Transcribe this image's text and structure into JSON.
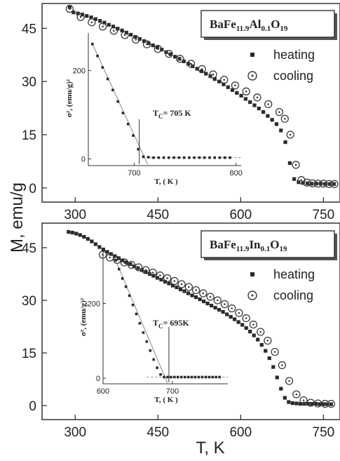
{
  "figure": {
    "y_axis_label": "M, emu/g",
    "x_axis_label": "T, K",
    "colors": {
      "heating": "#2a2a2a",
      "cooling": "#3a3a3a",
      "fit_line": "#888888",
      "axis": "#333333"
    }
  },
  "chart_data": [
    {
      "type": "scatter",
      "title_parts": [
        {
          "t": "BaFe",
          "s": ""
        },
        {
          "t": "11.9",
          "s": "sub"
        },
        {
          "t": "Al",
          "s": ""
        },
        {
          "t": "0.1",
          "s": "sub"
        },
        {
          "t": "O",
          "s": ""
        },
        {
          "t": "19",
          "s": "sub"
        }
      ],
      "xlim": [
        240,
        780
      ],
      "ylim": [
        -4,
        52
      ],
      "xticks": [
        "300",
        "450",
        "600",
        "750"
      ],
      "yticks": [
        "0",
        "15",
        "30",
        "45"
      ],
      "legend": {
        "position": "top-right",
        "heating": "heating",
        "cooling": "cooling"
      },
      "series": [
        {
          "name": "heating",
          "marker": "square",
          "x": [
            290,
            297,
            305,
            313,
            321,
            329,
            337,
            345,
            353,
            361,
            369,
            377,
            385,
            393,
            401,
            409,
            417,
            425,
            433,
            441,
            449,
            457,
            465,
            473,
            481,
            489,
            497,
            505,
            513,
            521,
            529,
            537,
            545,
            553,
            561,
            569,
            577,
            585,
            593,
            601,
            609,
            617,
            625,
            633,
            641,
            649,
            657,
            665,
            673,
            681,
            689,
            697,
            705,
            713,
            721,
            729,
            737,
            745,
            753,
            761,
            769
          ],
          "y": [
            51.0,
            49.5,
            49.2,
            48.9,
            48.5,
            48.1,
            47.6,
            47.1,
            46.6,
            46.0,
            45.5,
            44.9,
            44.4,
            43.8,
            43.2,
            42.6,
            42.0,
            41.4,
            40.8,
            40.2,
            39.6,
            39.0,
            38.3,
            37.7,
            37.0,
            36.4,
            35.7,
            35.0,
            34.3,
            33.6,
            32.9,
            32.2,
            31.5,
            30.7,
            30.0,
            29.2,
            28.4,
            27.6,
            26.8,
            26.0,
            25.1,
            24.2,
            23.3,
            22.4,
            21.4,
            20.3,
            19.2,
            18.0,
            16.2,
            12.9,
            7.0,
            2.5,
            1.6,
            1.4,
            1.3,
            1.2,
            1.2,
            1.2,
            1.1,
            1.1,
            1.1
          ]
        },
        {
          "name": "cooling",
          "marker": "circle-dot",
          "x": [
            290,
            310,
            330,
            350,
            370,
            390,
            410,
            430,
            450,
            470,
            490,
            510,
            530,
            550,
            570,
            590,
            610,
            630,
            650,
            670,
            680,
            690,
            700,
            710,
            720,
            730,
            740,
            750,
            760,
            770
          ],
          "y": [
            50.5,
            48.2,
            46.7,
            45.5,
            44.3,
            43.1,
            41.8,
            40.5,
            39.2,
            37.8,
            36.4,
            35.0,
            33.5,
            32.0,
            30.5,
            28.9,
            27.2,
            25.5,
            23.6,
            21.4,
            19.5,
            15.0,
            6.5,
            2.2,
            1.5,
            1.3,
            1.2,
            1.2,
            1.1,
            1.1
          ]
        }
      ],
      "inset": {
        "xlim": [
          655,
          805
        ],
        "ylim": [
          -15,
          285
        ],
        "xticks": [
          "700",
          "800"
        ],
        "yticks": [
          "0",
          "200"
        ],
        "ylabel": "σ², (emu/g)²",
        "xlabel": "T, ( K )",
        "annotation": "T = 705 K",
        "annotation_parts": [
          {
            "t": "T",
            "s": ""
          },
          {
            "t": "C",
            "s": "sub"
          },
          {
            "t": "= 705 K",
            "s": ""
          }
        ],
        "tc": 705,
        "x": [
          659,
          664,
          669,
          674,
          679,
          684,
          689,
          694,
          699,
          704,
          709,
          714,
          719,
          724,
          729,
          734,
          739,
          744,
          749,
          754,
          759,
          764,
          769,
          774,
          779,
          784,
          789,
          794
        ],
        "y": [
          260,
          233,
          207,
          181,
          156,
          130,
          104,
          79,
          53,
          22,
          5,
          4,
          3,
          3,
          3,
          3,
          3,
          3,
          3,
          3,
          3,
          3,
          3,
          3,
          3,
          3,
          3,
          3
        ]
      }
    },
    {
      "type": "scatter",
      "title_parts": [
        {
          "t": "BaFe",
          "s": ""
        },
        {
          "t": "11.9",
          "s": "sub"
        },
        {
          "t": "In",
          "s": ""
        },
        {
          "t": "0.1",
          "s": "sub"
        },
        {
          "t": "O",
          "s": ""
        },
        {
          "t": "19",
          "s": "sub"
        }
      ],
      "xlim": [
        240,
        780
      ],
      "ylim": [
        -4,
        52
      ],
      "xticks": [
        "300",
        "450",
        "600",
        "750"
      ],
      "yticks": [
        "0",
        "15",
        "30",
        "45"
      ],
      "legend": {
        "position": "top-right",
        "heating": "heating",
        "cooling": "cooling"
      },
      "series": [
        {
          "name": "heating",
          "marker": "square",
          "x": [
            288,
            295,
            302,
            309,
            316,
            323,
            330,
            337,
            344,
            351,
            358,
            365,
            372,
            379,
            386,
            393,
            400,
            407,
            414,
            421,
            428,
            435,
            442,
            449,
            456,
            463,
            470,
            477,
            484,
            491,
            498,
            505,
            512,
            519,
            526,
            533,
            540,
            547,
            554,
            561,
            568,
            575,
            582,
            589,
            596,
            603,
            610,
            617,
            624,
            631,
            638,
            645,
            652,
            659,
            666,
            673,
            680,
            687,
            694,
            701,
            708,
            715,
            722,
            729,
            736,
            743,
            750,
            757,
            764
          ],
          "y": [
            49.5,
            49.3,
            49.0,
            48.6,
            48.1,
            47.5,
            46.8,
            46.0,
            45.2,
            44.5,
            43.8,
            43.2,
            42.6,
            42.0,
            41.4,
            40.8,
            40.3,
            39.7,
            39.2,
            38.6,
            38.1,
            37.5,
            37.0,
            36.4,
            35.9,
            35.3,
            34.8,
            34.2,
            33.7,
            33.1,
            32.6,
            32.0,
            31.4,
            30.9,
            30.3,
            29.7,
            29.1,
            28.5,
            27.9,
            27.3,
            26.7,
            26.0,
            25.3,
            24.6,
            23.8,
            23.0,
            22.1,
            21.1,
            20.0,
            18.8,
            17.3,
            15.6,
            13.5,
            11.0,
            8.0,
            4.8,
            2.2,
            1.0,
            0.7,
            0.6,
            0.5,
            0.5,
            0.5,
            0.5,
            0.5,
            0.4,
            0.4,
            0.4,
            0.4
          ]
        },
        {
          "name": "cooling",
          "marker": "circle-dot",
          "x": [
            350,
            363,
            376,
            389,
            402,
            415,
            428,
            441,
            454,
            467,
            480,
            493,
            506,
            519,
            532,
            545,
            558,
            571,
            584,
            597,
            610,
            623,
            636,
            649,
            662,
            675,
            688,
            701,
            714,
            727,
            740,
            753,
            764
          ],
          "y": [
            43.0,
            42.2,
            41.5,
            40.8,
            40.1,
            39.4,
            38.6,
            37.9,
            37.1,
            36.3,
            35.5,
            34.6,
            33.8,
            32.9,
            32.0,
            31.0,
            30.0,
            28.9,
            27.7,
            26.4,
            24.9,
            23.1,
            21.0,
            18.5,
            15.3,
            11.5,
            7.0,
            3.2,
            1.5,
            0.8,
            0.6,
            0.5,
            0.5
          ]
        }
      ],
      "inset": {
        "xlim": [
          600,
          780
        ],
        "ylim": [
          -15,
          340
        ],
        "xticks": [
          "600",
          "700"
        ],
        "yticks": [
          "0",
          "200"
        ],
        "ylabel": "σ², (emu/g)²",
        "xlabel": "T, ( K )",
        "annotation": "T = 695K",
        "annotation_parts": [
          {
            "t": "T",
            "s": ""
          },
          {
            "t": "C",
            "s": "sub"
          },
          {
            "t": "= 695K",
            "s": ""
          }
        ],
        "tc": 695,
        "x": [
          618,
          623,
          628,
          633,
          638,
          643,
          648,
          653,
          658,
          663,
          668,
          673,
          678,
          683,
          688,
          693,
          698,
          703,
          708,
          713,
          718,
          723,
          728,
          733,
          738,
          743,
          748,
          753,
          758,
          763,
          768
        ],
        "y": [
          316,
          292,
          267,
          245,
          221,
          196,
          172,
          147,
          122,
          98,
          74,
          50,
          28,
          10,
          3,
          3,
          3,
          3,
          3,
          3,
          3,
          3,
          3,
          3,
          3,
          3,
          3,
          3,
          3,
          3,
          3
        ]
      }
    }
  ]
}
